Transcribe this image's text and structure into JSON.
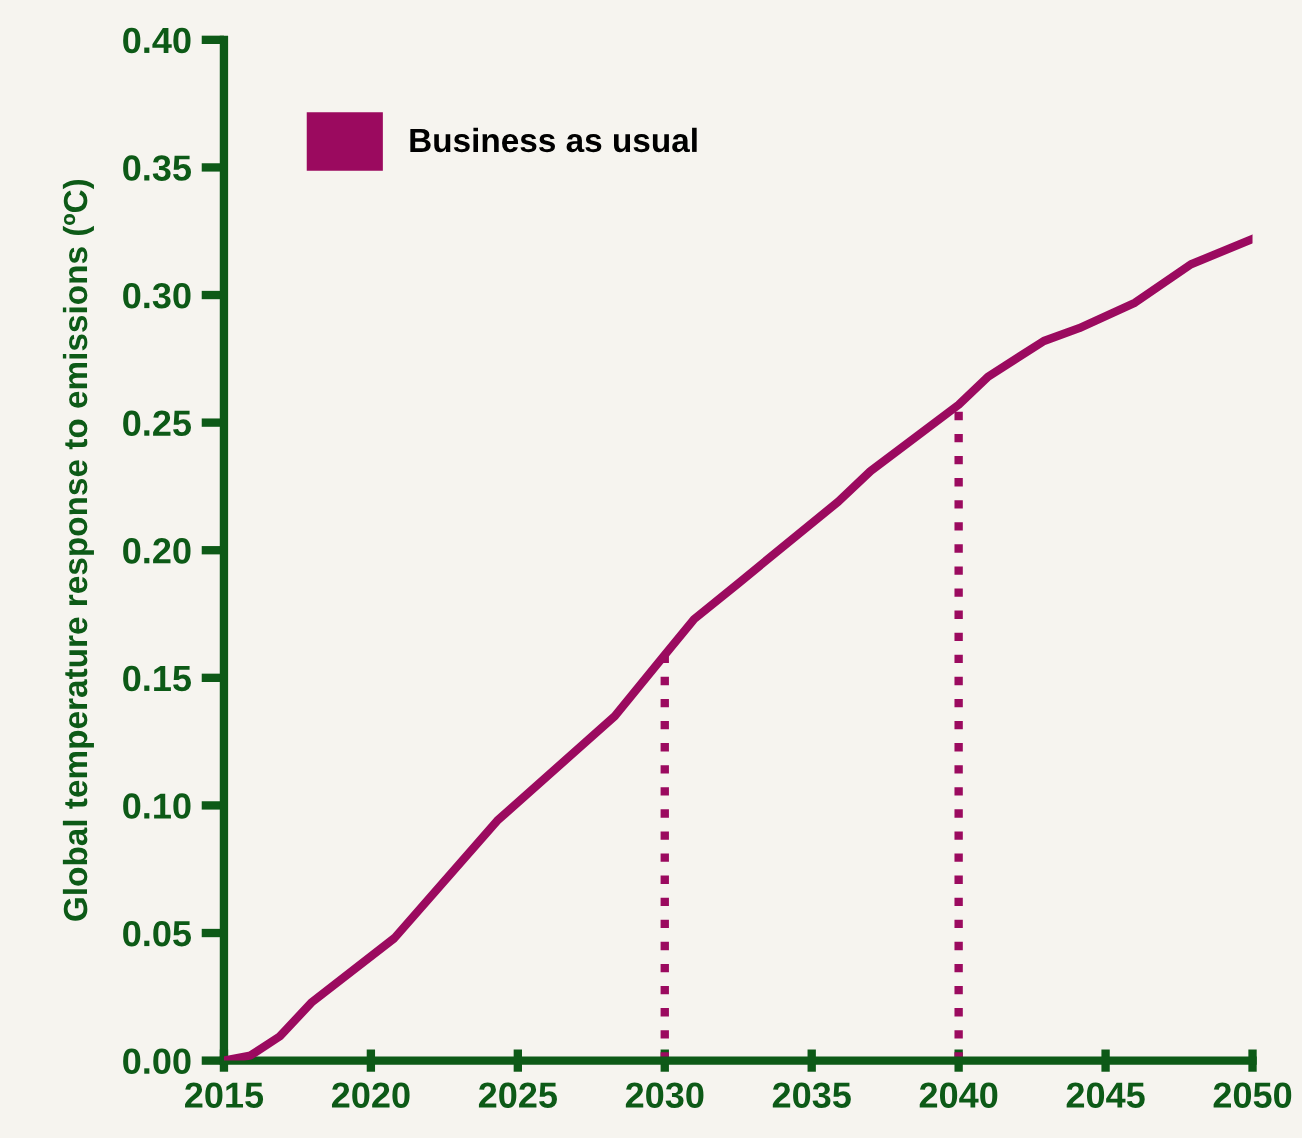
{
  "chart_data": {
    "type": "line",
    "ylabel": "Global temperature response to emissions (ºC)",
    "xlim": [
      2015,
      2050
    ],
    "xticks": [
      2015,
      2020,
      2025,
      2030,
      2035,
      2040,
      2045,
      2050
    ],
    "ylim": [
      0,
      0.4
    ],
    "yticks": [
      {
        "value": 0,
        "label": "0.00"
      },
      {
        "value": 0.05,
        "label": "0.05"
      },
      {
        "value": 0.1,
        "label": "0.10"
      },
      {
        "value": 0.15,
        "label": "0.15"
      },
      {
        "value": 0.2,
        "label": "0.20"
      },
      {
        "value": 0.25,
        "label": "0.25"
      },
      {
        "value": 0.3,
        "label": "0.30"
      },
      {
        "value": 0.35,
        "label": "0.35"
      },
      {
        "value": 0.4,
        "label": "0.40"
      }
    ],
    "grid": false,
    "legend": "top left",
    "marker": "none",
    "line_style": "solid",
    "series": [
      {
        "name": "Business as usual",
        "color": "#9b0a5f",
        "x": [
          2015,
          2015.9,
          2016.9,
          2018.0,
          2020.8,
          2024.3,
          2028.3,
          2030.0,
          2031.0,
          2032.5,
          2035.9,
          2037.0,
          2040.0,
          2041.0,
          2042.9,
          2044.1,
          2046.0,
          2047.9,
          2050.0
        ],
        "values": [
          0,
          0.002,
          0.0095,
          0.023,
          0.048,
          0.094,
          0.135,
          0.159,
          0.173,
          0.187,
          0.219,
          0.231,
          0.257,
          0.268,
          0.282,
          0.287,
          0.297,
          0.312,
          0.322
        ]
      }
    ],
    "ref_lines": [
      {
        "axis": "x",
        "value": 2030,
        "color": "#9b0a5f",
        "line_style": "dotted"
      },
      {
        "axis": "x",
        "value": 2040,
        "color": "#9b0a5f",
        "line_style": "dotted"
      }
    ]
  }
}
